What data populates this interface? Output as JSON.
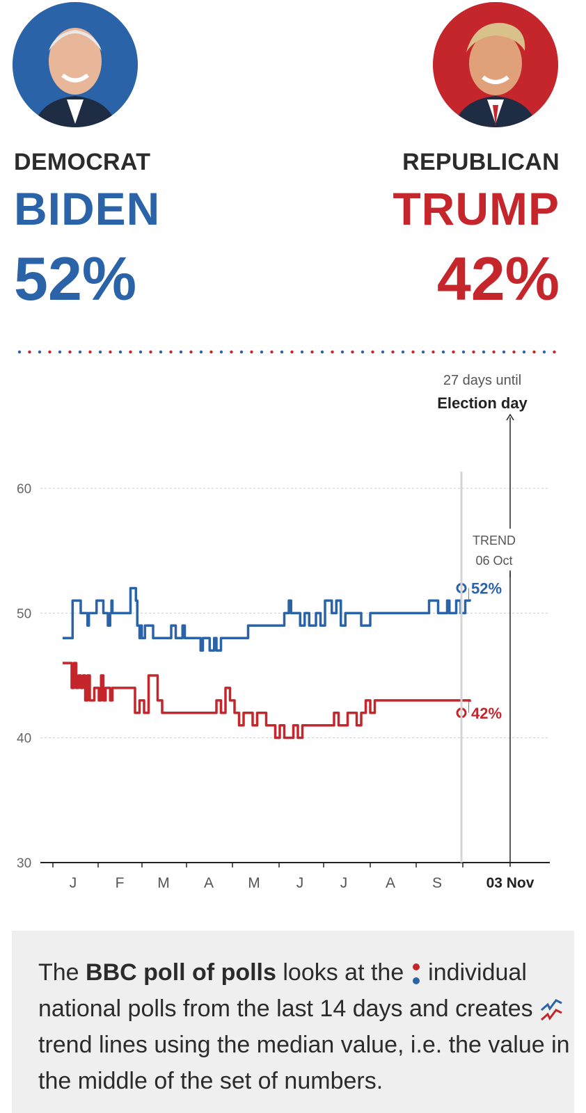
{
  "candidates": {
    "democrat": {
      "party": "DEMOCRAT",
      "name": "BIDEN",
      "pct": "52%",
      "color": "#2a63a8",
      "photo": "portrait-photo"
    },
    "republican": {
      "party": "REPUBLICAN",
      "name": "TRUMP",
      "pct": "42%",
      "color": "#c4262b",
      "photo": "portrait-photo"
    }
  },
  "chart_data": {
    "type": "line",
    "ylim": [
      30,
      60
    ],
    "yticks": [
      "30",
      "40",
      "50",
      "60"
    ],
    "categories": [
      "J",
      "F",
      "M",
      "A",
      "M",
      "J",
      "J",
      "A",
      "S",
      "03 Nov"
    ],
    "election": {
      "line1": "27 days until",
      "line2": "Election day"
    },
    "trend": {
      "label": "TREND",
      "date": "06 Oct"
    },
    "series": [
      {
        "name": "Biden",
        "color": "#2a63a8",
        "end_label": "52%",
        "x": [
          0.0,
          0.2,
          0.22,
          0.4,
          0.5,
          0.55,
          0.58,
          0.7,
          0.75,
          0.9,
          0.92,
          1.0,
          1.05,
          1.08,
          1.1,
          1.3,
          1.5,
          1.6,
          1.62,
          1.65,
          1.7,
          1.72,
          1.75,
          1.8,
          1.82,
          1.9,
          2.0,
          2.05,
          2.2,
          2.35,
          2.4,
          2.5,
          2.55,
          2.65,
          2.7,
          2.8,
          2.9,
          3.0,
          3.05,
          3.1,
          3.2,
          3.25,
          3.35,
          3.4,
          3.5,
          3.6,
          3.75,
          3.85,
          3.9,
          4.05,
          4.1,
          4.15,
          4.2,
          4.25,
          4.5,
          4.5,
          4.7,
          4.9,
          5.0,
          5.05,
          5.15,
          5.25,
          5.35,
          5.45,
          5.6,
          5.7,
          5.8,
          5.95,
          6.05,
          6.15,
          6.25,
          6.35,
          6.5,
          6.6,
          6.8,
          7.0,
          7.2,
          7.3,
          7.4,
          7.6,
          7.8,
          7.9,
          8.0,
          8.1,
          8.2,
          8.3,
          8.4,
          8.5,
          8.55,
          8.6,
          8.7,
          8.8,
          8.9,
          8.95,
          9.0
        ],
        "y": [
          48,
          48,
          51,
          50,
          50,
          49,
          50,
          50,
          51,
          50,
          50,
          49,
          50,
          51,
          50,
          50,
          52,
          52,
          51,
          49,
          48,
          49,
          48,
          48,
          49,
          49,
          48,
          48,
          48,
          48,
          49,
          48,
          48,
          49,
          48,
          48,
          48,
          48,
          47,
          48,
          48,
          47,
          48,
          47,
          48,
          48,
          48,
          48,
          48,
          48,
          49,
          49,
          49,
          49,
          49,
          49,
          49,
          50,
          51,
          50,
          50,
          49,
          50,
          49,
          50,
          49,
          51,
          50,
          51,
          49,
          50,
          50,
          50,
          49,
          50,
          50,
          50,
          50,
          50,
          50,
          50,
          50,
          50,
          51,
          51,
          50,
          50,
          51,
          50,
          50,
          51,
          50,
          51,
          51,
          52
        ],
        "color_key": "blue"
      },
      {
        "name": "Trump",
        "color": "#c4262b",
        "end_label": "42%",
        "x": [
          0.0,
          0.1,
          0.2,
          0.25,
          0.3,
          0.35,
          0.4,
          0.45,
          0.5,
          0.55,
          0.6,
          0.7,
          0.8,
          0.85,
          0.9,
          0.95,
          1.0,
          1.05,
          1.1,
          1.2,
          1.3,
          1.4,
          1.5,
          1.6,
          1.7,
          1.8,
          1.9,
          2.0,
          2.1,
          2.2,
          2.3,
          2.4,
          2.5,
          2.6,
          2.7,
          2.8,
          2.9,
          3.0,
          3.1,
          3.2,
          3.3,
          3.4,
          3.5,
          3.6,
          3.7,
          3.8,
          3.9,
          4.0,
          4.1,
          4.2,
          4.3,
          4.5,
          4.6,
          4.7,
          4.8,
          4.9,
          5.0,
          5.1,
          5.2,
          5.3,
          5.4,
          5.5,
          5.6,
          5.7,
          5.8,
          5.9,
          6.0,
          6.1,
          6.2,
          6.3,
          6.4,
          6.5,
          6.6,
          6.7,
          6.8,
          6.9,
          7.0,
          7.1,
          7.2,
          7.3,
          7.4,
          7.6,
          7.8,
          7.9,
          8.0,
          8.1,
          8.2,
          8.4,
          8.6,
          8.8,
          9.0
        ],
        "y": [
          46,
          46,
          44,
          46,
          44,
          45,
          44,
          45,
          43,
          45,
          43,
          44,
          43,
          45,
          43,
          44,
          44,
          43,
          44,
          44,
          44,
          44,
          44,
          42,
          43,
          42,
          45,
          45,
          43,
          42,
          42,
          42,
          42,
          42,
          42,
          42,
          42,
          42,
          42,
          42,
          42,
          43,
          42,
          44,
          43,
          42,
          41,
          42,
          42,
          41,
          42,
          41,
          41,
          40,
          41,
          40,
          40,
          41,
          40,
          41,
          41,
          41,
          41,
          41,
          41,
          41,
          42,
          41,
          41,
          42,
          42,
          41,
          42,
          43,
          42,
          43,
          43,
          43,
          43,
          43,
          43,
          43,
          43,
          43,
          43,
          43,
          43,
          43,
          43,
          43,
          42
        ],
        "color_key": "red"
      }
    ]
  },
  "info": {
    "p1": "The ",
    "p2": "BBC poll of polls",
    "p3": " looks at the ",
    "p4": " individual national polls from the last 14 days and creates ",
    "p5": " trend lines using the median value, i.e. the value in the middle of the set of numbers."
  }
}
